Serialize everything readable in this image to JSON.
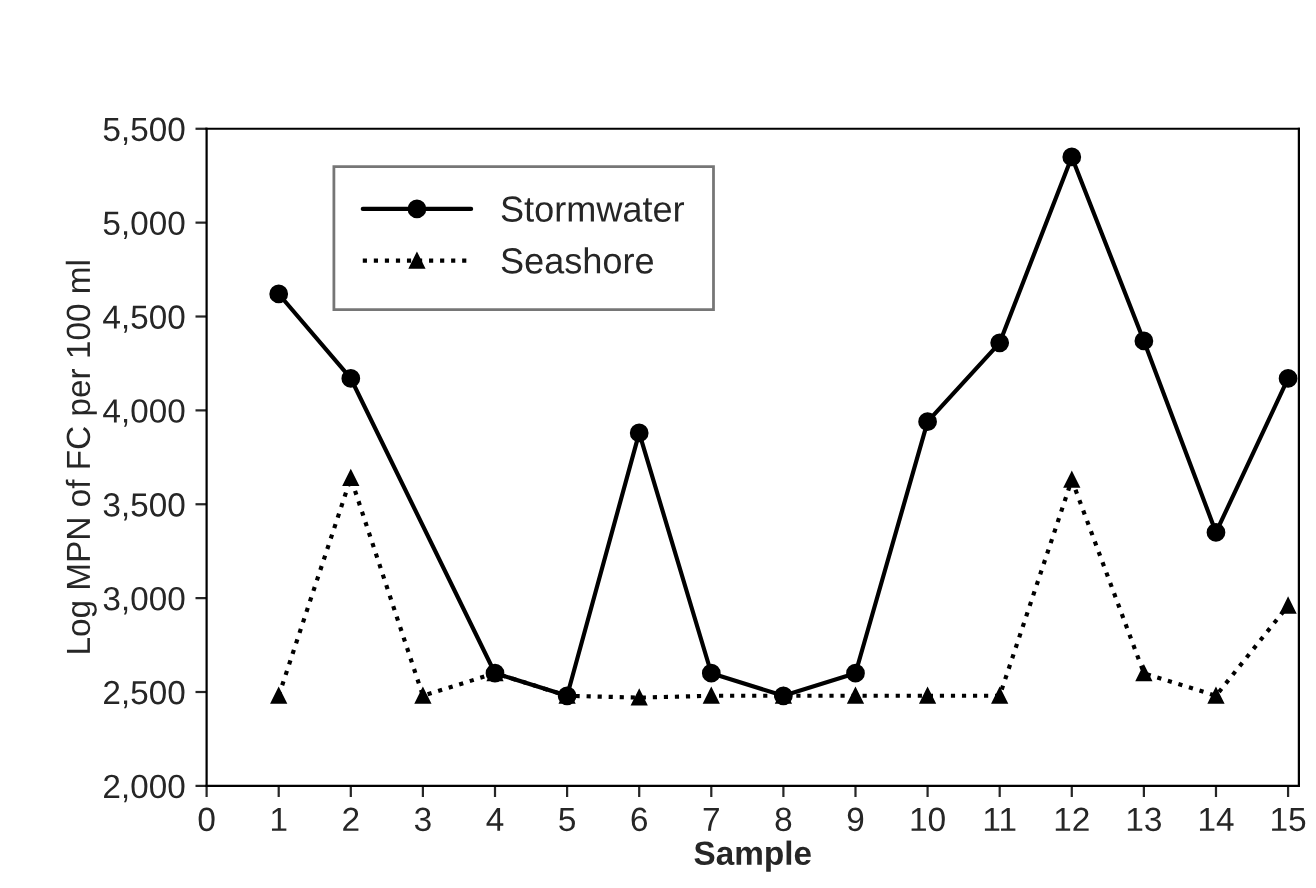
{
  "chart_data": {
    "type": "line",
    "xlabel": "Sample",
    "ylabel": "Log MPN of FC per 100 ml",
    "xlim": [
      0,
      15.15
    ],
    "xticks": [
      0,
      1,
      2,
      3,
      4,
      5,
      6,
      7,
      8,
      9,
      10,
      11,
      12,
      13,
      14,
      15
    ],
    "ylim": [
      2000,
      5500
    ],
    "yticks": [
      {
        "value": 2000,
        "label": "2,000"
      },
      {
        "value": 2500,
        "label": "2,500"
      },
      {
        "value": 3000,
        "label": "3,000"
      },
      {
        "value": 3500,
        "label": "3,500"
      },
      {
        "value": 4000,
        "label": "4,000"
      },
      {
        "value": 4500,
        "label": "4,500"
      },
      {
        "value": 5000,
        "label": "5,000"
      },
      {
        "value": 5500,
        "label": "5,500"
      }
    ],
    "grid": false,
    "legend": "top left",
    "series": [
      {
        "name": "Stormwater",
        "color": "#000000",
        "marker": "circle",
        "line_style": "solid",
        "x": [
          1,
          2,
          4,
          5,
          6,
          7,
          8,
          9,
          10,
          11,
          12,
          13,
          14,
          15
        ],
        "values": [
          4620,
          4170,
          2600,
          2480,
          3880,
          2600,
          2480,
          2600,
          3940,
          4360,
          5350,
          4370,
          3350,
          4170
        ]
      },
      {
        "name": "Seashore",
        "color": "#000000",
        "marker": "triangle",
        "line_style": "dotted",
        "x": [
          1,
          2,
          3,
          4,
          5,
          6,
          7,
          8,
          9,
          10,
          11,
          12,
          13,
          14,
          15
        ],
        "values": [
          2480,
          3640,
          2480,
          2600,
          2480,
          2470,
          2480,
          2480,
          2480,
          2480,
          2480,
          3630,
          2600,
          2480,
          2960
        ]
      }
    ]
  }
}
